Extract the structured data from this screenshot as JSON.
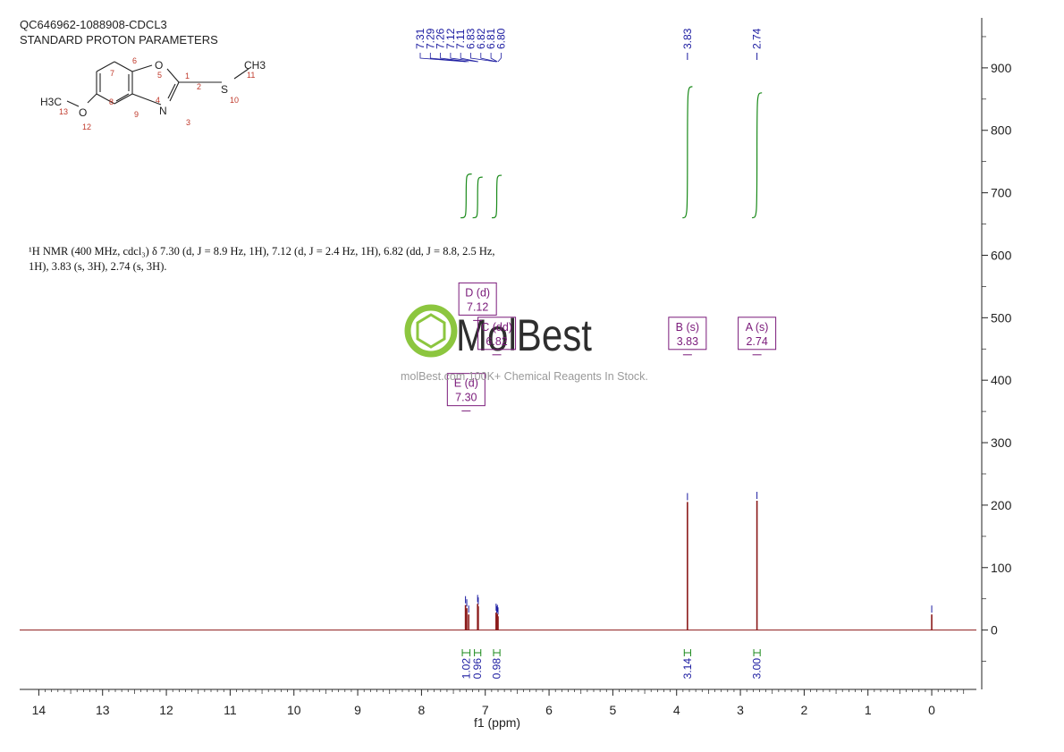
{
  "header": {
    "line1": "QC646962-1088908-CDCL3",
    "line2": "STANDARD PROTON PARAMETERS"
  },
  "description": {
    "line1": "¹H NMR (400 MHz, cdcl₃) δ 7.30 (d, J = 8.9 Hz, 1H), 7.12 (d, J = 2.4 Hz, 1H), 6.82 (dd, J = 8.8, 2.5 Hz,",
    "line2": "1H), 3.83 (s, 3H), 2.74 (s, 3H)."
  },
  "watermark": {
    "brand": "MolBest",
    "url": "molBest.com  100K+ Chemical Reagents In Stock.",
    "brand_color": "#8cc63f"
  },
  "structure": {
    "atoms": [
      "H3C",
      "13",
      "O",
      "12",
      "8",
      "9",
      "7",
      "6",
      "5",
      "4",
      "O",
      "1",
      "2",
      "N",
      "3",
      "S",
      "10",
      "CH3",
      "11"
    ]
  },
  "chart_data": {
    "type": "line",
    "title": "",
    "xlabel": "f1 (ppm)",
    "ylabel": "",
    "xlim": [
      14.3,
      -0.7
    ],
    "ylim": [
      -95,
      980
    ],
    "x_ticks": [
      "14",
      "13",
      "12",
      "11",
      "10",
      "9",
      "8",
      "7",
      "6",
      "5",
      "4",
      "3",
      "2",
      "1",
      "0"
    ],
    "y_ticks": [
      "900",
      "800",
      "700",
      "600",
      "500",
      "400",
      "300",
      "200",
      "100",
      "0"
    ],
    "colors": {
      "spectrum": "#8b1a1a",
      "integral": "#1a8a1a",
      "peak_label": "#1a1aa0",
      "multiplet": "#7a1a7a",
      "axis": "#222222"
    },
    "peaks": [
      {
        "ppm": 7.31,
        "height": 40
      },
      {
        "ppm": 7.29,
        "height": 35
      },
      {
        "ppm": 7.26,
        "height": 25
      },
      {
        "ppm": 7.12,
        "height": 42
      },
      {
        "ppm": 7.11,
        "height": 38
      },
      {
        "ppm": 6.83,
        "height": 28
      },
      {
        "ppm": 6.82,
        "height": 24
      },
      {
        "ppm": 6.81,
        "height": 26
      },
      {
        "ppm": 6.8,
        "height": 22
      },
      {
        "ppm": 3.83,
        "height": 205
      },
      {
        "ppm": 2.74,
        "height": 207
      },
      {
        "ppm": 0.0,
        "height": 25
      }
    ],
    "peak_labels": [
      "7.31",
      "7.29",
      "7.26",
      "7.12",
      "7.11",
      "6.83",
      "6.82",
      "6.81",
      "6.80",
      "3.83",
      "2.74"
    ],
    "integrals": [
      {
        "from": 7.36,
        "to": 7.24,
        "value": "1.02",
        "curve_top": 730,
        "curve_bottom": 660
      },
      {
        "from": 7.17,
        "to": 7.07,
        "value": "0.96",
        "curve_top": 725,
        "curve_bottom": 660
      },
      {
        "from": 6.87,
        "to": 6.77,
        "value": "0.98",
        "curve_top": 728,
        "curve_bottom": 660
      },
      {
        "from": 3.88,
        "to": 3.78,
        "value": "3.14",
        "curve_top": 870,
        "curve_bottom": 660
      },
      {
        "from": 2.79,
        "to": 2.69,
        "value": "3.00",
        "curve_top": 860,
        "curve_bottom": 660
      }
    ],
    "multiplets": [
      {
        "name": "D (d)",
        "shift": "7.12",
        "ppm": 7.12,
        "level": 530
      },
      {
        "name": "C (dd)",
        "shift": "6.82",
        "ppm": 6.82,
        "level": 475
      },
      {
        "name": "E (d)",
        "shift": "7.30",
        "ppm": 7.3,
        "level": 385
      },
      {
        "name": "B (s)",
        "shift": "3.83",
        "ppm": 3.83,
        "level": 475
      },
      {
        "name": "A (s)",
        "shift": "2.74",
        "ppm": 2.74,
        "level": 475
      }
    ]
  }
}
